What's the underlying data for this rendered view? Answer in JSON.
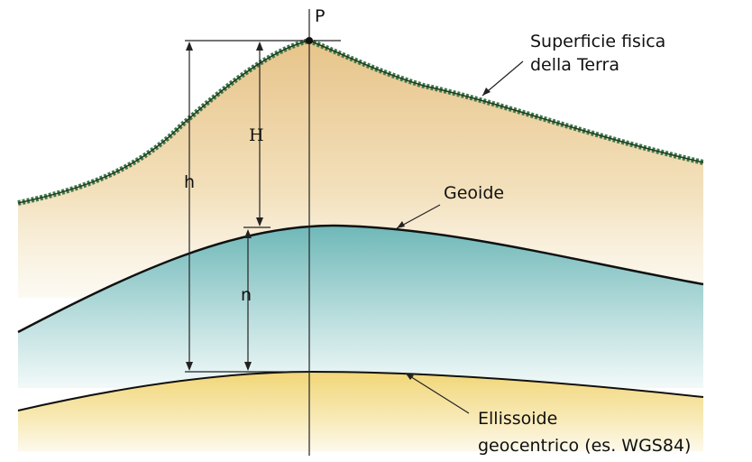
{
  "point": "P",
  "surface": {
    "line1": "Superficie fisica",
    "line2": "della Terra"
  },
  "orthometric_height": "H",
  "ellipsoidal_height": "h",
  "geoid": "Geoide",
  "undulation": "n",
  "ellipsoid": {
    "line1": "Ellissoide",
    "line2": "geocentrico (es. WGS84)"
  }
}
